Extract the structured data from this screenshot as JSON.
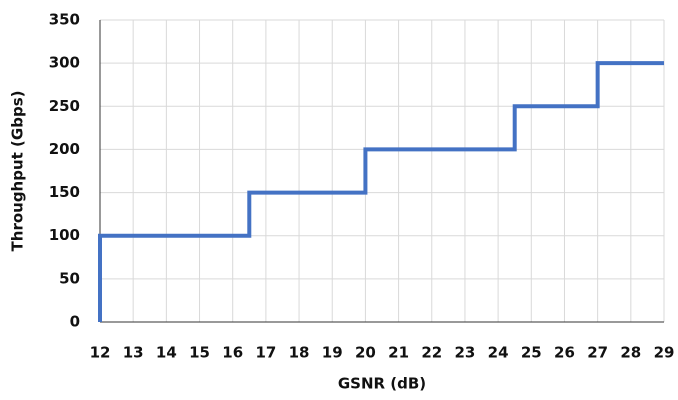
{
  "chart_data": {
    "type": "line",
    "x_label": "GSNR (dB)",
    "y_label": "Throughput (Gbps)",
    "x": [
      12,
      12,
      16.5,
      16.5,
      20,
      20,
      24.5,
      24.5,
      27,
      27,
      29
    ],
    "values": [
      0,
      100,
      100,
      150,
      150,
      200,
      200,
      250,
      250,
      300,
      300
    ],
    "color": "#4472c4",
    "xlim": [
      12,
      29
    ],
    "xticks": [
      12,
      13,
      14,
      15,
      16,
      17,
      18,
      19,
      20,
      21,
      22,
      23,
      24,
      25,
      26,
      27,
      28,
      29
    ],
    "ylim": [
      0,
      350
    ],
    "yticks": [
      0,
      50,
      100,
      150,
      200,
      250,
      300,
      350
    ],
    "grid": true
  }
}
